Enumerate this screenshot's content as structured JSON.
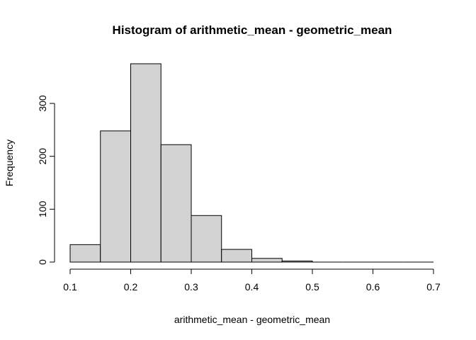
{
  "chart_data": {
    "type": "bar",
    "title": "Histogram of arithmetic_mean - geometric_mean",
    "xlabel": "arithmetic_mean - geometric_mean",
    "ylabel": "Frequency",
    "bins": [
      {
        "x0": 0.1,
        "x1": 0.15,
        "count": 33
      },
      {
        "x0": 0.15,
        "x1": 0.2,
        "count": 248
      },
      {
        "x0": 0.2,
        "x1": 0.25,
        "count": 375
      },
      {
        "x0": 0.25,
        "x1": 0.3,
        "count": 222
      },
      {
        "x0": 0.3,
        "x1": 0.35,
        "count": 88
      },
      {
        "x0": 0.35,
        "x1": 0.4,
        "count": 24
      },
      {
        "x0": 0.4,
        "x1": 0.45,
        "count": 7
      },
      {
        "x0": 0.45,
        "x1": 0.5,
        "count": 2
      },
      {
        "x0": 0.5,
        "x1": 0.55,
        "count": 0
      },
      {
        "x0": 0.55,
        "x1": 0.6,
        "count": 0
      },
      {
        "x0": 0.6,
        "x1": 0.65,
        "count": 0
      },
      {
        "x0": 0.65,
        "x1": 0.7,
        "count": 0
      }
    ],
    "xlim": [
      0.1,
      0.7
    ],
    "ylim": [
      0,
      375
    ],
    "x_ticks": [
      0.1,
      0.2,
      0.3,
      0.4,
      0.5,
      0.6,
      0.7
    ],
    "x_tick_labels": [
      "0.1",
      "0.2",
      "0.3",
      "0.4",
      "0.5",
      "0.6",
      "0.7"
    ],
    "y_ticks": [
      0,
      100,
      200,
      300
    ],
    "y_tick_labels": [
      "0",
      "100",
      "200",
      "300"
    ],
    "grid": false,
    "legend": "none",
    "bar_fill": "#d3d3d3",
    "bar_stroke": "#000000"
  }
}
